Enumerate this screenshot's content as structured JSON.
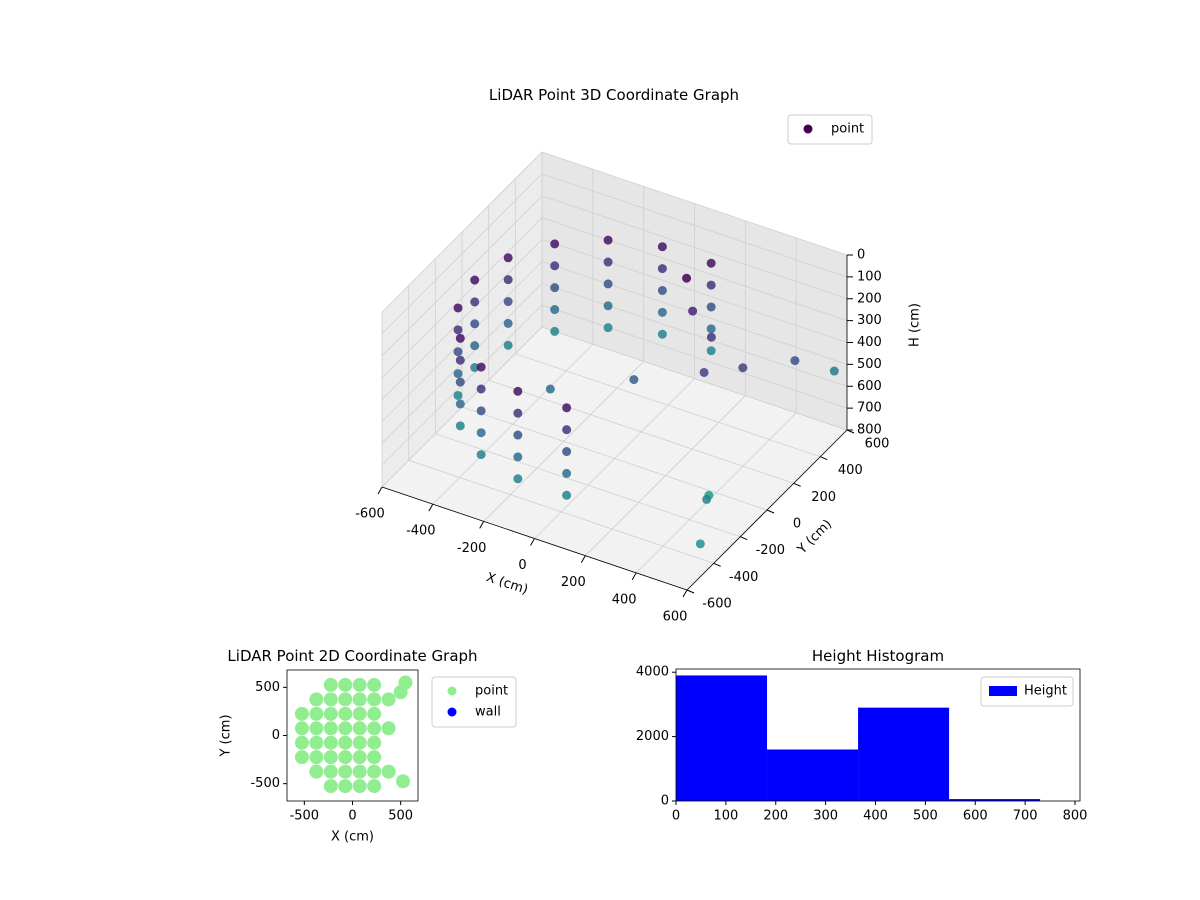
{
  "chart_data": [
    {
      "type": "scatter3d",
      "title": "LiDAR Point 3D Coordinate Graph",
      "xlabel": "X (cm)",
      "ylabel": "Y (cm)",
      "zlabel": "H (cm)",
      "xlim": [
        -600,
        600
      ],
      "ylim": [
        -600,
        600
      ],
      "zlim": [
        800,
        0
      ],
      "xticks": [
        -600,
        -400,
        -200,
        0,
        200,
        400,
        600
      ],
      "yticks": [
        -600,
        -400,
        -200,
        0,
        200,
        400,
        600
      ],
      "zticks": [
        0,
        100,
        200,
        300,
        400,
        500,
        600,
        700,
        800
      ],
      "colormap": "viridis",
      "grid": true,
      "legend": "upper right",
      "series": [
        {
          "name": "point",
          "color": "#440154",
          "x": [
            96,
            96,
            96,
            96,
            96,
            -96,
            -96,
            -96,
            -96,
            -96,
            -275,
            -275,
            -275,
            -275,
            -275,
            -421,
            -421,
            -421,
            -421,
            -421,
            -517,
            -517,
            -517,
            -517,
            -517,
            -550,
            -550,
            -550,
            -550,
            -550,
            -517,
            -517,
            -517,
            -517,
            -517,
            -421,
            -421,
            -421,
            -421,
            -421,
            -275,
            -275,
            -275,
            -275,
            -275,
            -96,
            -96,
            -96,
            -96,
            -96,
            96,
            96,
            96,
            96,
            96,
            100,
            150,
            250,
            300,
            400,
            50,
            -200,
            500,
            520,
            450,
            600,
            550
          ],
          "y": [
            542,
            542,
            542,
            542,
            542,
            542,
            542,
            542,
            542,
            542,
            476,
            476,
            476,
            476,
            476,
            354,
            354,
            354,
            354,
            354,
            188,
            188,
            188,
            188,
            188,
            0,
            0,
            0,
            0,
            0,
            -188,
            -188,
            -188,
            -188,
            -188,
            -354,
            -354,
            -354,
            -354,
            -354,
            -476,
            -476,
            -476,
            -476,
            -476,
            -542,
            -542,
            -542,
            -542,
            -542,
            -542,
            -542,
            -542,
            -542,
            -542,
            350,
            300,
            250,
            100,
            200,
            50,
            -100,
            400,
            -300,
            -150,
            -500,
            600
          ],
          "z": [
            200,
            300,
            400,
            500,
            600,
            200,
            300,
            400,
            500,
            600,
            200,
            300,
            400,
            500,
            600,
            200,
            300,
            400,
            500,
            600,
            200,
            300,
            400,
            500,
            600,
            200,
            300,
            400,
            500,
            600,
            200,
            300,
            400,
            500,
            600,
            200,
            300,
            400,
            500,
            600,
            200,
            300,
            400,
            500,
            600,
            200,
            300,
            400,
            500,
            600,
            200,
            300,
            400,
            500,
            600,
            150,
            250,
            300,
            350,
            350,
            450,
            500,
            400,
            600,
            700,
            650,
            550
          ]
        }
      ]
    },
    {
      "type": "scatter",
      "title": "LiDAR Point 2D Coordinate Graph",
      "xlabel": "X (cm)",
      "ylabel": "Y (cm)",
      "xlim": [
        -680,
        680
      ],
      "ylim": [
        -680,
        680
      ],
      "xticks": [
        -500,
        0,
        500
      ],
      "yticks": [
        -500,
        0,
        500
      ],
      "legend": "outside upper left",
      "series": [
        {
          "name": "point",
          "color": "#90ee90",
          "x": [
            -525,
            -525,
            -525,
            -525,
            -375,
            -375,
            -375,
            -375,
            -375,
            -375,
            -225,
            -225,
            -225,
            -225,
            -225,
            -225,
            -225,
            -225,
            -75,
            -75,
            -75,
            -75,
            -75,
            -75,
            -75,
            -75,
            75,
            75,
            75,
            75,
            75,
            75,
            75,
            75,
            225,
            225,
            225,
            225,
            225,
            225,
            225,
            225,
            375,
            375,
            375,
            525,
            550,
            500
          ],
          "y": [
            -225,
            -75,
            75,
            225,
            -375,
            -225,
            -75,
            75,
            225,
            375,
            -525,
            -375,
            -225,
            -75,
            75,
            225,
            375,
            525,
            -525,
            -375,
            -225,
            -75,
            75,
            225,
            375,
            525,
            -525,
            -375,
            -225,
            -75,
            75,
            225,
            375,
            525,
            -525,
            -375,
            -225,
            -75,
            75,
            225,
            375,
            525,
            375,
            -375,
            75,
            -475,
            550,
            450
          ]
        },
        {
          "name": "wall",
          "color": "#0000ff",
          "x": [],
          "y": []
        }
      ]
    },
    {
      "type": "histogram",
      "title": "Height Histogram",
      "bins": [
        0,
        182.5,
        365,
        547.5,
        730
      ],
      "xlim": [
        0,
        810
      ],
      "ylim": [
        0,
        4100
      ],
      "xticks": [
        0,
        100,
        200,
        300,
        400,
        500,
        600,
        700,
        800
      ],
      "yticks": [
        0,
        2000,
        4000
      ],
      "legend": "upper right",
      "series": [
        {
          "name": "Height",
          "color": "#0000ff",
          "values": [
            3900,
            1600,
            2900,
            60
          ]
        }
      ]
    }
  ]
}
